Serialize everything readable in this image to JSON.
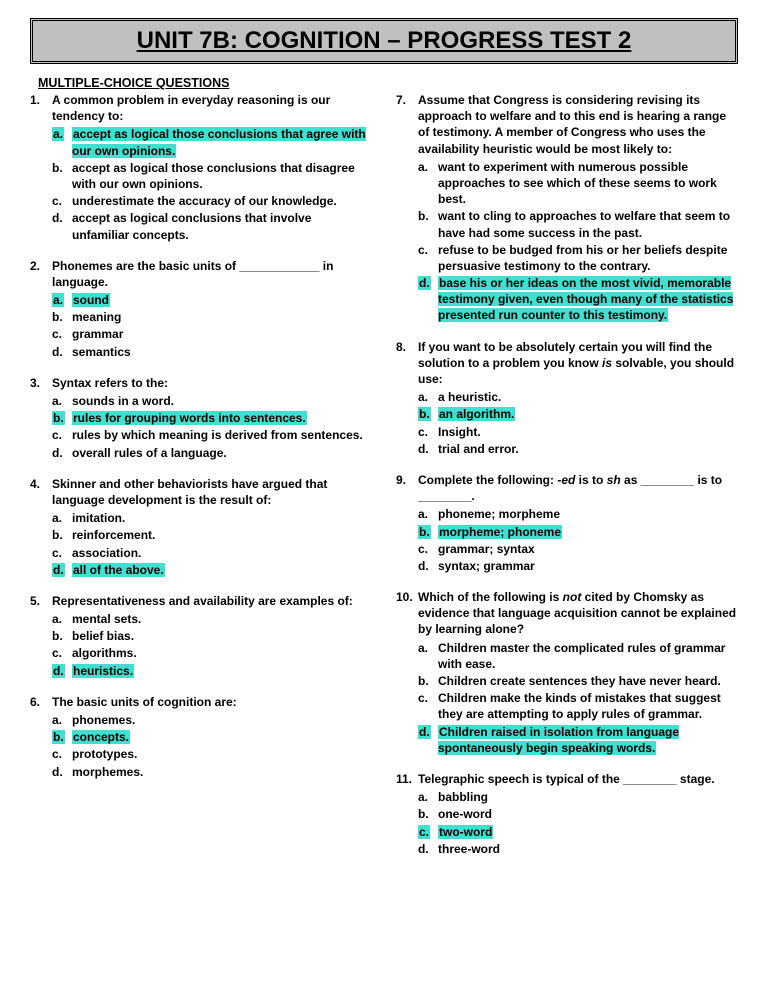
{
  "title": "UNIT 7B: COGNITION – PROGRESS TEST 2",
  "section_header": "MULTIPLE-CHOICE QUESTIONS",
  "highlight_color": "#40e0d0",
  "left": [
    {
      "num": "1.",
      "stem": "A common problem in everyday reasoning is our tendency to:",
      "opts": [
        {
          "l": "a.",
          "t": "accept as logical those conclusions that agree with our own opinions.",
          "hl": true
        },
        {
          "l": "b.",
          "t": "accept as logical those conclusions that disagree with our own opinions.",
          "hl": false
        },
        {
          "l": "c.",
          "t": "underestimate the accuracy of our knowledge.",
          "hl": false
        },
        {
          "l": "d.",
          "t": "accept as logical conclusions that involve unfamiliar concepts.",
          "hl": false
        }
      ]
    },
    {
      "num": "2.",
      "stem": "Phonemes are the basic units of ____________ in language.",
      "opts": [
        {
          "l": "a.",
          "t": "sound",
          "hl": true
        },
        {
          "l": "b.",
          "t": "meaning",
          "hl": false
        },
        {
          "l": "c.",
          "t": "grammar",
          "hl": false
        },
        {
          "l": "d.",
          "t": "semantics",
          "hl": false
        }
      ]
    },
    {
      "num": "3.",
      "stem": "Syntax refers to the:",
      "opts": [
        {
          "l": "a.",
          "t": "sounds in a word.",
          "hl": false
        },
        {
          "l": "b.",
          "t": "rules for grouping words into sentences.",
          "hl": true
        },
        {
          "l": "c.",
          "t": "rules by which meaning is derived from sentences.",
          "hl": false
        },
        {
          "l": "d.",
          "t": "overall rules of a language.",
          "hl": false
        }
      ]
    },
    {
      "num": "4.",
      "stem": "Skinner and other behaviorists have argued that language development is the result of:",
      "opts": [
        {
          "l": "a.",
          "t": "imitation.",
          "hl": false
        },
        {
          "l": "b.",
          "t": "reinforcement.",
          "hl": false
        },
        {
          "l": "c.",
          "t": "association.",
          "hl": false
        },
        {
          "l": "d.",
          "t": "all of the above.",
          "hl": true
        }
      ]
    },
    {
      "num": "5.",
      "stem": "Representativeness and availability are examples of:",
      "opts": [
        {
          "l": "a.",
          "t": "mental sets.",
          "hl": false
        },
        {
          "l": "b.",
          "t": "belief bias.",
          "hl": false
        },
        {
          "l": "c.",
          "t": "algorithms.",
          "hl": false
        },
        {
          "l": "d.",
          "t": "heuristics.",
          "hl": true
        }
      ]
    },
    {
      "num": "6.",
      "stem": "The basic units of cognition are:",
      "opts": [
        {
          "l": "a.",
          "t": "phonemes.",
          "hl": false
        },
        {
          "l": "b.",
          "t": "concepts.",
          "hl": true
        },
        {
          "l": "c.",
          "t": "prototypes.",
          "hl": false
        },
        {
          "l": "d.",
          "t": "morphemes.",
          "hl": false
        }
      ]
    }
  ],
  "right": [
    {
      "num": "7.",
      "stem": "Assume that Congress is considering revising its approach to welfare and to this end is hearing a range of testimony.  A member of Congress who uses the availability heuristic would be most likely to:",
      "opts": [
        {
          "l": "a.",
          "t": "want to experiment with numerous possible approaches to see which of these seems to work best.",
          "hl": false
        },
        {
          "l": "b.",
          "t": "want to cling to approaches to welfare that seem to have had some success in the past.",
          "hl": false
        },
        {
          "l": "c.",
          "t": "refuse to be budged from his or her beliefs despite persuasive testimony to the contrary.",
          "hl": false
        },
        {
          "l": "d.",
          "t": "base his or her ideas on the most vivid, memorable testimony given, even though many of the statistics presented run counter to this testimony.",
          "hl": true
        }
      ]
    },
    {
      "num": "8.",
      "stem_html": "If you want to be absolutely certain you will find the solution to a problem you know <span class=\"italic\">is</span> solvable, you should use:",
      "opts": [
        {
          "l": "a.",
          "t": "a heuristic.",
          "hl": false
        },
        {
          "l": "b.",
          "t": "an algorithm.",
          "hl": true
        },
        {
          "l": "c.",
          "t": "Insight.",
          "hl": false
        },
        {
          "l": "d.",
          "t": "trial and error.",
          "hl": false
        }
      ]
    },
    {
      "num": "9.",
      "stem_html": "Complete the following: -<span class=\"italic\">ed</span> is to <span class=\"italic\">sh</span> as ________ is to ________.",
      "opts": [
        {
          "l": "a.",
          "t": "phoneme; morpheme",
          "hl": false
        },
        {
          "l": "b.",
          "t": "morpheme; phoneme",
          "hl": true
        },
        {
          "l": "c.",
          "t": "grammar; syntax",
          "hl": false
        },
        {
          "l": "d.",
          "t": "syntax; grammar",
          "hl": false
        }
      ]
    },
    {
      "num": "10.",
      "stem_html": "Which of the following is <span class=\"italic\">not</span> cited by Chomsky as evidence that language acquisition cannot be explained by learning alone?",
      "opts": [
        {
          "l": "a.",
          "t": "Children master the complicated rules of grammar with ease.",
          "hl": false
        },
        {
          "l": "b.",
          "t": "Children create sentences they have never heard.",
          "hl": false
        },
        {
          "l": "c.",
          "t": "Children make the kinds of mistakes that suggest they are attempting to apply rules of grammar.",
          "hl": false
        },
        {
          "l": "d.",
          "t": "Children raised in isolation from language spontaneously begin speaking words.",
          "hl": true
        }
      ]
    },
    {
      "num": "11.",
      "stem": "Telegraphic speech is typical of the ________ stage.",
      "opts": [
        {
          "l": "a.",
          "t": "babbling",
          "hl": false
        },
        {
          "l": "b.",
          "t": "one-word",
          "hl": false
        },
        {
          "l": "c.",
          "t": "two-word",
          "hl": true
        },
        {
          "l": "d.",
          "t": "three-word",
          "hl": false
        }
      ]
    }
  ]
}
